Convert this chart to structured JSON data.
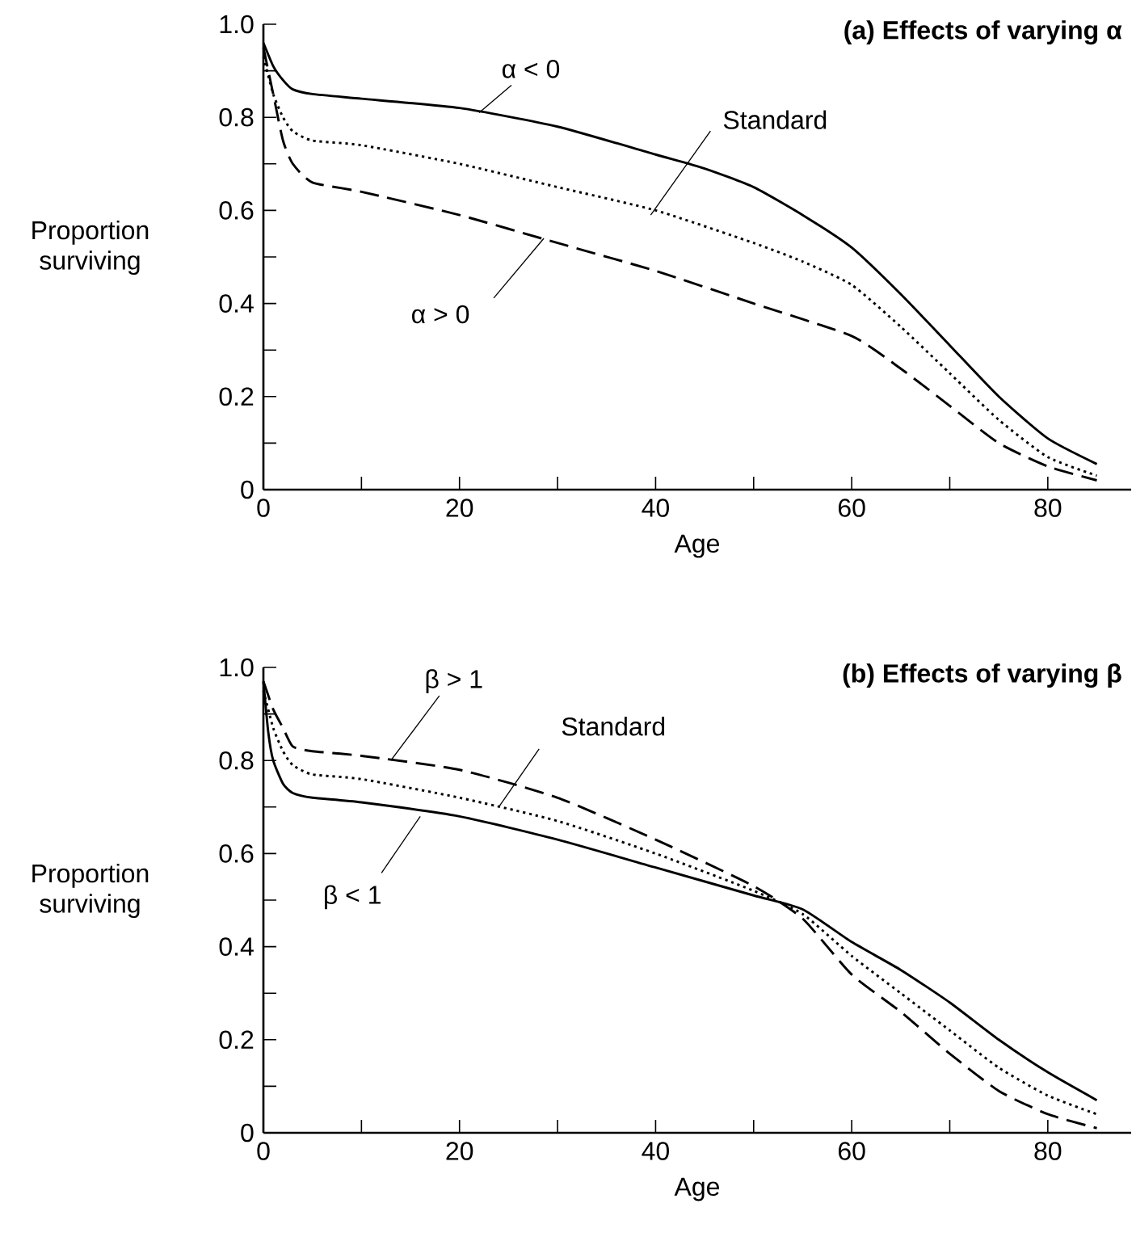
{
  "chart_data": [
    {
      "type": "line",
      "title": "(a) Effects of varying α",
      "xlabel": "Age",
      "ylabel": "Proportion surviving",
      "xlim": [
        0,
        88.5
      ],
      "ylim": [
        0,
        1
      ],
      "xticks": [
        0,
        {
          "value": 10,
          "label": null
        },
        20,
        {
          "value": 30,
          "label": null
        },
        40,
        {
          "value": 50,
          "label": null
        },
        60,
        {
          "value": 70,
          "label": null
        },
        80
      ],
      "yticks": [
        0,
        {
          "value": 0.1,
          "label": null
        },
        0.2,
        {
          "value": 0.3,
          "label": null
        },
        0.4,
        {
          "value": 0.5,
          "label": null
        },
        0.6,
        {
          "value": 0.7,
          "label": null
        },
        0.8,
        {
          "value": 0.9,
          "label": null
        },
        {
          "value": 1,
          "label": "1.0"
        }
      ],
      "marker": "none",
      "series": [
        {
          "color": "#000000",
          "line_style": "solid",
          "x": [
            0,
            1,
            2,
            3,
            5,
            10,
            20,
            30,
            40,
            45,
            50,
            55,
            60,
            65,
            70,
            75,
            80,
            85
          ],
          "values": [
            0.96,
            0.91,
            0.88,
            0.86,
            0.85,
            0.84,
            0.82,
            0.78,
            0.72,
            0.69,
            0.65,
            0.59,
            0.52,
            0.42,
            0.31,
            0.2,
            0.11,
            0.055
          ]
        },
        {
          "color": "#000000",
          "line_style": "dotted",
          "x": [
            0,
            1,
            2,
            3,
            5,
            10,
            20,
            30,
            40,
            50,
            55,
            60,
            65,
            70,
            75,
            80,
            85
          ],
          "values": [
            0.93,
            0.85,
            0.8,
            0.77,
            0.75,
            0.74,
            0.7,
            0.65,
            0.6,
            0.53,
            0.49,
            0.44,
            0.35,
            0.25,
            0.15,
            0.07,
            0.03
          ]
        },
        {
          "color": "#000000",
          "line_style": "dashed",
          "x": [
            0,
            1,
            2,
            3,
            5,
            10,
            20,
            30,
            40,
            50,
            60,
            65,
            70,
            75,
            80,
            85
          ],
          "values": [
            0.95,
            0.85,
            0.75,
            0.7,
            0.66,
            0.64,
            0.59,
            0.53,
            0.47,
            0.4,
            0.33,
            0.26,
            0.18,
            0.1,
            0.05,
            0.02
          ]
        }
      ],
      "annotations": [
        {
          "text": "α < 0",
          "x": 22,
          "y": 0.81
        },
        {
          "text": "Standard",
          "x": 39.5,
          "y": 0.59
        },
        {
          "text": "α > 0",
          "x": 28.6,
          "y": 0.54
        }
      ]
    },
    {
      "type": "line",
      "title": "(b) Effects of varying β",
      "xlabel": "Age",
      "ylabel": "Proportion surviving",
      "xlim": [
        0,
        88.5
      ],
      "ylim": [
        0,
        1
      ],
      "xticks": [
        0,
        {
          "value": 10,
          "label": null
        },
        20,
        {
          "value": 30,
          "label": null
        },
        40,
        {
          "value": 50,
          "label": null
        },
        60,
        {
          "value": 70,
          "label": null
        },
        80
      ],
      "yticks": [
        0,
        {
          "value": 0.1,
          "label": null
        },
        0.2,
        {
          "value": 0.3,
          "label": null
        },
        0.4,
        {
          "value": 0.5,
          "label": null
        },
        0.6,
        {
          "value": 0.7,
          "label": null
        },
        0.8,
        {
          "value": 0.9,
          "label": null
        },
        {
          "value": 1,
          "label": "1.0"
        }
      ],
      "marker": "none",
      "series": [
        {
          "color": "#000000",
          "line_style": "solid",
          "x": [
            0,
            0.5,
            1,
            2,
            3,
            5,
            10,
            20,
            30,
            40,
            50,
            55,
            60,
            65,
            70,
            75,
            80,
            85
          ],
          "values": [
            0.97,
            0.86,
            0.8,
            0.75,
            0.73,
            0.72,
            0.71,
            0.68,
            0.63,
            0.57,
            0.51,
            0.48,
            0.41,
            0.35,
            0.28,
            0.2,
            0.13,
            0.07
          ]
        },
        {
          "color": "#000000",
          "line_style": "dotted",
          "x": [
            0,
            1,
            2,
            3,
            5,
            10,
            20,
            30,
            40,
            50,
            55,
            60,
            65,
            70,
            75,
            80,
            85
          ],
          "values": [
            0.95,
            0.87,
            0.82,
            0.79,
            0.77,
            0.76,
            0.72,
            0.67,
            0.6,
            0.52,
            0.47,
            0.38,
            0.3,
            0.22,
            0.14,
            0.08,
            0.04
          ]
        },
        {
          "color": "#000000",
          "line_style": "dashed",
          "x": [
            0,
            1,
            2,
            3,
            5,
            10,
            20,
            30,
            40,
            50,
            55,
            60,
            65,
            70,
            75,
            80,
            85
          ],
          "values": [
            0.97,
            0.91,
            0.87,
            0.83,
            0.82,
            0.81,
            0.78,
            0.72,
            0.63,
            0.53,
            0.46,
            0.34,
            0.26,
            0.17,
            0.09,
            0.04,
            0.01
          ]
        }
      ],
      "annotations": [
        {
          "text": "β > 1",
          "x": 13,
          "y": 0.8
        },
        {
          "text": "Standard",
          "x": 24,
          "y": 0.7
        },
        {
          "text": "β < 1",
          "x": 16,
          "y": 0.68
        }
      ]
    }
  ]
}
